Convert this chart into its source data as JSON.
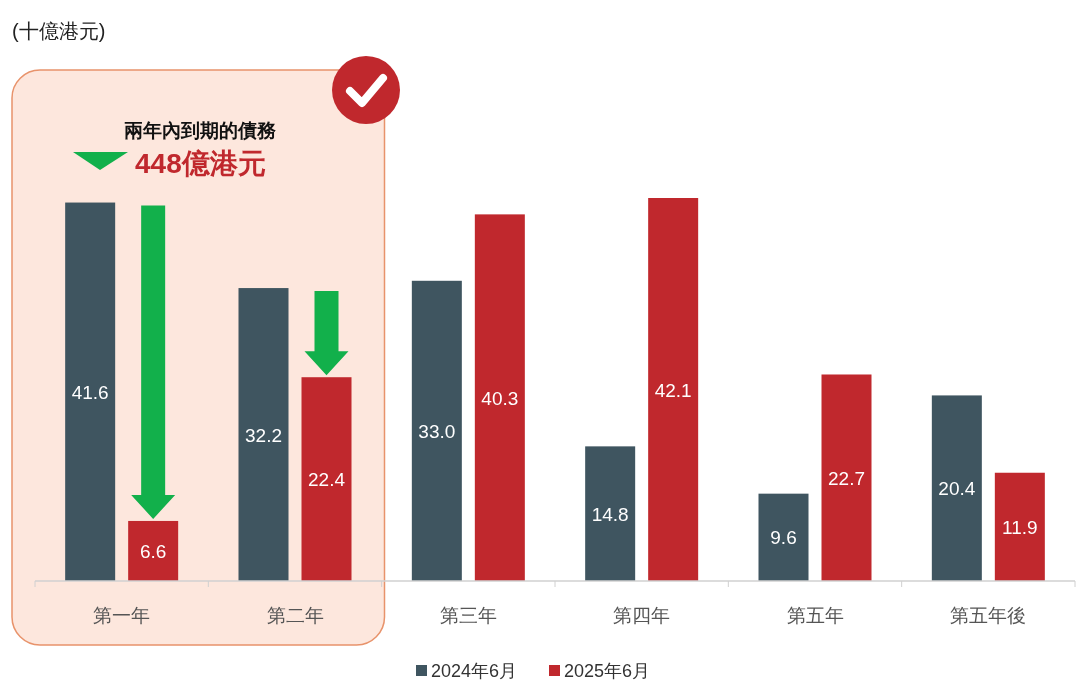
{
  "chart_data": {
    "type": "bar",
    "categories": [
      "第一年",
      "第二年",
      "第三年",
      "第四年",
      "第五年",
      "第五年後"
    ],
    "series": [
      {
        "name": "2024年6月",
        "color": "#3f5560",
        "values": [
          41.6,
          32.2,
          33.0,
          14.8,
          9.6,
          20.4
        ],
        "value_labels": [
          "41.6",
          "32.2",
          "33.0",
          "14.8",
          "9.6",
          "20.4"
        ]
      },
      {
        "name": "2025年6月",
        "color": "#c0282d",
        "values": [
          6.6,
          22.4,
          40.3,
          42.1,
          22.7,
          11.9
        ],
        "value_labels": [
          "6.6",
          "22.4",
          "40.3",
          "42.1",
          "22.7",
          "11.9"
        ]
      }
    ],
    "legend": "bottom",
    "annotations": [
      "(十億港元)",
      "兩年內到期的債務",
      "448億港元"
    ]
  }
}
